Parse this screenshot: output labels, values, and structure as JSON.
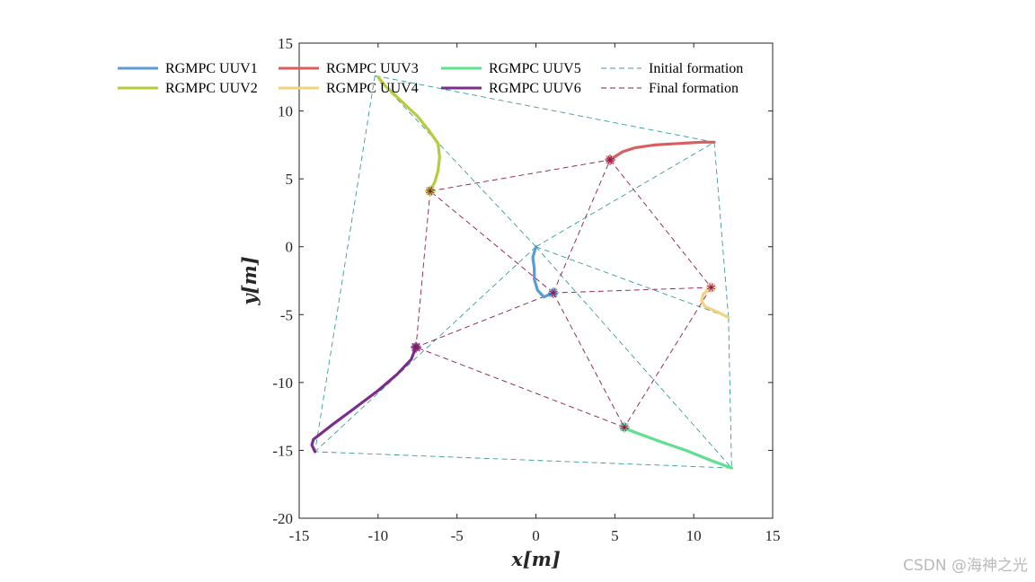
{
  "chart_data": {
    "type": "line",
    "title": "",
    "xlabel": "x[m]",
    "ylabel": "y[m]",
    "xlim": [
      -15,
      15
    ],
    "ylim": [
      -20,
      15
    ],
    "xticks": [
      -15,
      -10,
      -5,
      0,
      5,
      10,
      15
    ],
    "yticks": [
      -20,
      -15,
      -10,
      -5,
      0,
      5,
      10,
      15
    ],
    "xtick_labels": [
      "-15",
      "-10",
      "-5",
      "0",
      "5",
      "10",
      "15"
    ],
    "ytick_labels": [
      "-20",
      "-15",
      "-10",
      "-5",
      "0",
      "5",
      "10",
      "15"
    ],
    "grid": false,
    "legend_position": "top",
    "series": [
      {
        "name": "RGMPC UUV1",
        "color": "#5b9bd5",
        "x": [
          0,
          -0.2,
          -0.1,
          -0.1,
          0.1,
          0.5,
          1.1
        ],
        "y": [
          0,
          -0.8,
          -1.6,
          -2.4,
          -3.2,
          -3.7,
          -3.4
        ]
      },
      {
        "name": "RGMPC UUV2",
        "color": "#b5cc3c",
        "x": [
          -10,
          -9.5,
          -8.5,
          -7.5,
          -6.8,
          -6.2,
          -6.1,
          -6.2,
          -6.4,
          -6.7
        ],
        "y": [
          12.5,
          11.8,
          10.7,
          9.6,
          8.6,
          7.6,
          6.6,
          5.6,
          4.8,
          4.1
        ]
      },
      {
        "name": "RGMPC UUV3",
        "color": "#d95f5f",
        "x": [
          11.3,
          10.5,
          9,
          7.5,
          6.3,
          5.5,
          5.1,
          4.7
        ],
        "y": [
          7.7,
          7.7,
          7.6,
          7.5,
          7.3,
          7.0,
          6.7,
          6.4
        ]
      },
      {
        "name": "RGMPC UUV4",
        "color": "#f2d27e",
        "x": [
          12.2,
          11.5,
          10.7,
          10.5,
          10.6,
          10.9,
          11.1
        ],
        "y": [
          -5.2,
          -4.8,
          -4.4,
          -4.0,
          -3.5,
          -3.2,
          -3.0
        ]
      },
      {
        "name": "RGMPC UUV5",
        "color": "#5ee08f",
        "x": [
          12.4,
          11,
          9.5,
          8,
          6.8,
          5.9,
          5.6
        ],
        "y": [
          -16.3,
          -15.7,
          -15,
          -14.4,
          -13.9,
          -13.5,
          -13.3
        ]
      },
      {
        "name": "RGMPC UUV6",
        "color": "#7b2d8e",
        "x": [
          -14,
          -14.2,
          -14.1,
          -13,
          -11.5,
          -10,
          -8.8,
          -7.9,
          -7.6
        ],
        "y": [
          -15.1,
          -14.6,
          -14.2,
          -13.2,
          -11.9,
          -10.6,
          -9.4,
          -8.3,
          -7.4
        ]
      }
    ],
    "initial_formation": {
      "name": "Initial formation",
      "color": "#3a9a9a",
      "points": {
        "1": [
          0,
          0
        ],
        "2": [
          -10.2,
          12.6
        ],
        "3": [
          11.3,
          7.7
        ],
        "4": [
          12.2,
          -5.2
        ],
        "5": [
          12.4,
          -16.3
        ],
        "6": [
          -14.0,
          -15.1
        ]
      },
      "edges": [
        [
          1,
          2
        ],
        [
          1,
          3
        ],
        [
          1,
          4
        ],
        [
          1,
          5
        ],
        [
          1,
          6
        ],
        [
          2,
          3
        ],
        [
          2,
          6
        ],
        [
          3,
          4
        ],
        [
          4,
          5
        ],
        [
          5,
          6
        ]
      ]
    },
    "final_formation": {
      "name": "Final formation",
      "color": "#8b1a4f",
      "points": {
        "1": [
          1.1,
          -3.4
        ],
        "2": [
          -6.7,
          4.1
        ],
        "3": [
          4.7,
          6.4
        ],
        "4": [
          11.1,
          -3.0
        ],
        "5": [
          5.6,
          -13.3
        ],
        "6": [
          -7.6,
          -7.4
        ]
      },
      "edges": [
        [
          1,
          2
        ],
        [
          1,
          3
        ],
        [
          1,
          4
        ],
        [
          1,
          5
        ],
        [
          1,
          6
        ],
        [
          2,
          3
        ],
        [
          2,
          6
        ],
        [
          3,
          4
        ],
        [
          4,
          5
        ],
        [
          5,
          6
        ]
      ]
    }
  },
  "watermark": "CSDN @海神之光"
}
